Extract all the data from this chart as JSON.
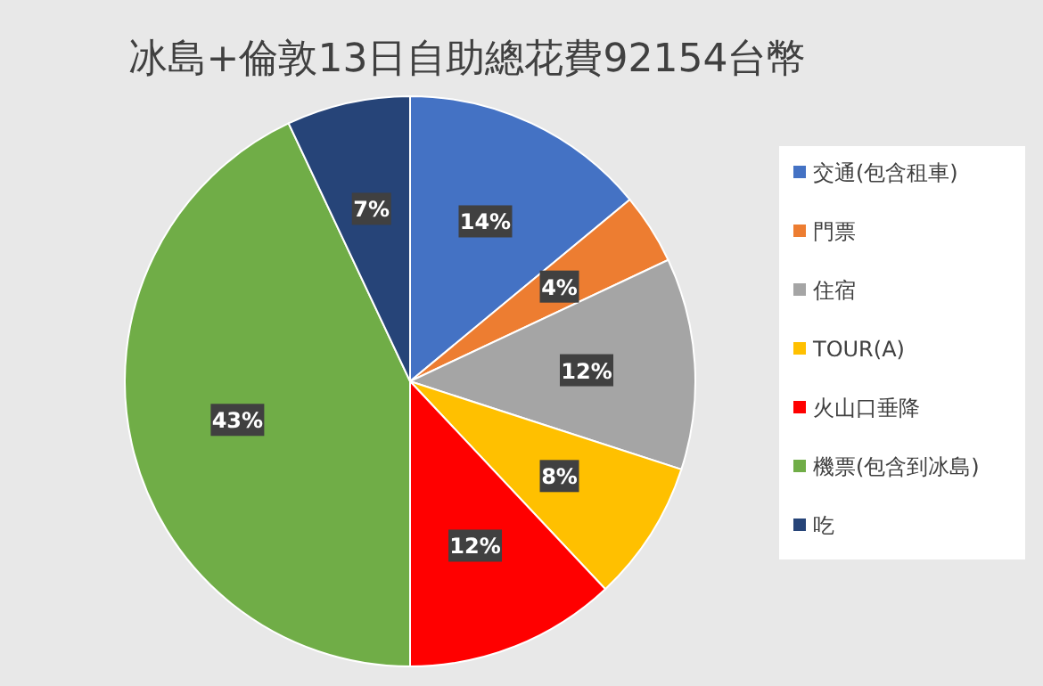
{
  "chart_data": {
    "type": "pie",
    "title": "冰島+倫敦13日自助總花費92154台幣",
    "categories": [
      "交通(包含租車)",
      "門票",
      "住宿",
      "TOUR(A)",
      "火山口垂降",
      "機票(包含到冰島)",
      "吃"
    ],
    "values": [
      14,
      4,
      12,
      8,
      12,
      43,
      7
    ],
    "colors": [
      "#4472c4",
      "#ed7d31",
      "#a5a5a5",
      "#ffc000",
      "#ff0000",
      "#70ad47",
      "#264478"
    ],
    "value_labels": [
      "14%",
      "4%",
      "12%",
      "8%",
      "12%",
      "43%",
      "7%"
    ],
    "legend": "right"
  }
}
